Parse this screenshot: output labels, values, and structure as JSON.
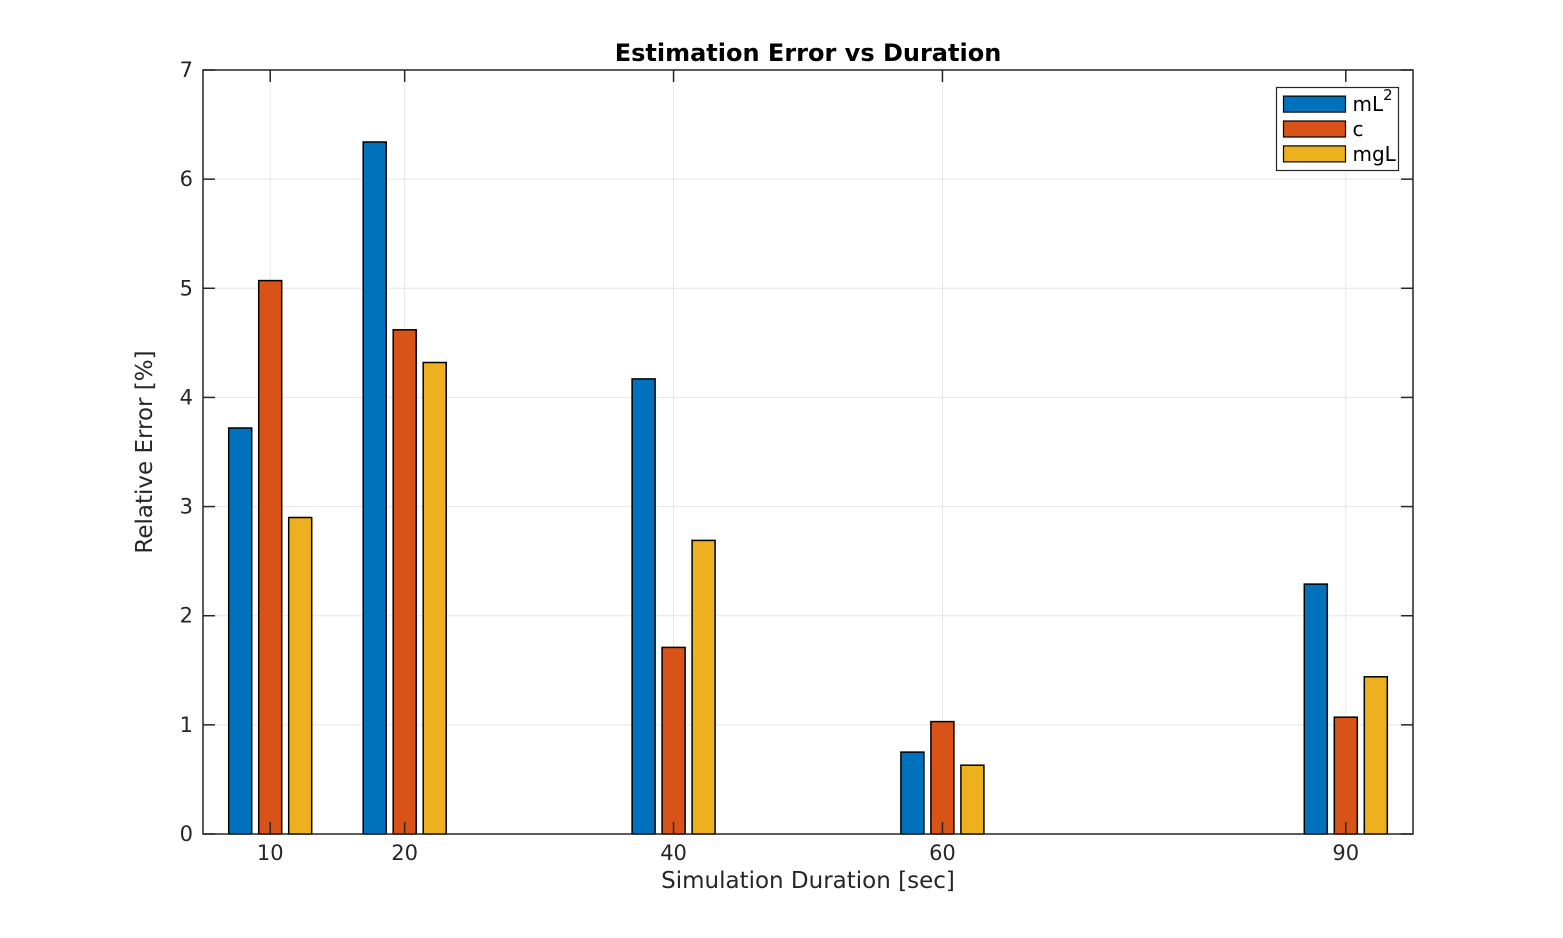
{
  "chart_data": {
    "type": "bar",
    "title": "Estimation Error vs Duration",
    "xlabel": "Simulation Duration [sec]",
    "ylabel": "Relative Error [%]",
    "categories": [
      10,
      20,
      40,
      60,
      90
    ],
    "series": [
      {
        "name": "mL^2",
        "color": "#0072BD",
        "values": [
          3.72,
          6.34,
          4.17,
          0.75,
          2.29
        ]
      },
      {
        "name": "c",
        "color": "#D95319",
        "values": [
          5.07,
          4.62,
          1.71,
          1.03,
          1.07
        ]
      },
      {
        "name": "mgL",
        "color": "#EDB120",
        "values": [
          2.9,
          4.32,
          2.69,
          0.63,
          1.44
        ]
      }
    ],
    "xlim": [
      5,
      95
    ],
    "ylim": [
      0,
      7
    ],
    "xticks": [
      10,
      20,
      40,
      60,
      90
    ],
    "yticks": [
      0,
      1,
      2,
      3,
      4,
      5,
      6,
      7
    ],
    "grid": true,
    "legend_position": "northeast",
    "colors": {
      "bar_edge": "#000000",
      "grid": "#e6e6e6",
      "axis": "#262626",
      "background": "#ffffff",
      "legend_border": "#262626",
      "legend_background": "#ffffff"
    }
  }
}
